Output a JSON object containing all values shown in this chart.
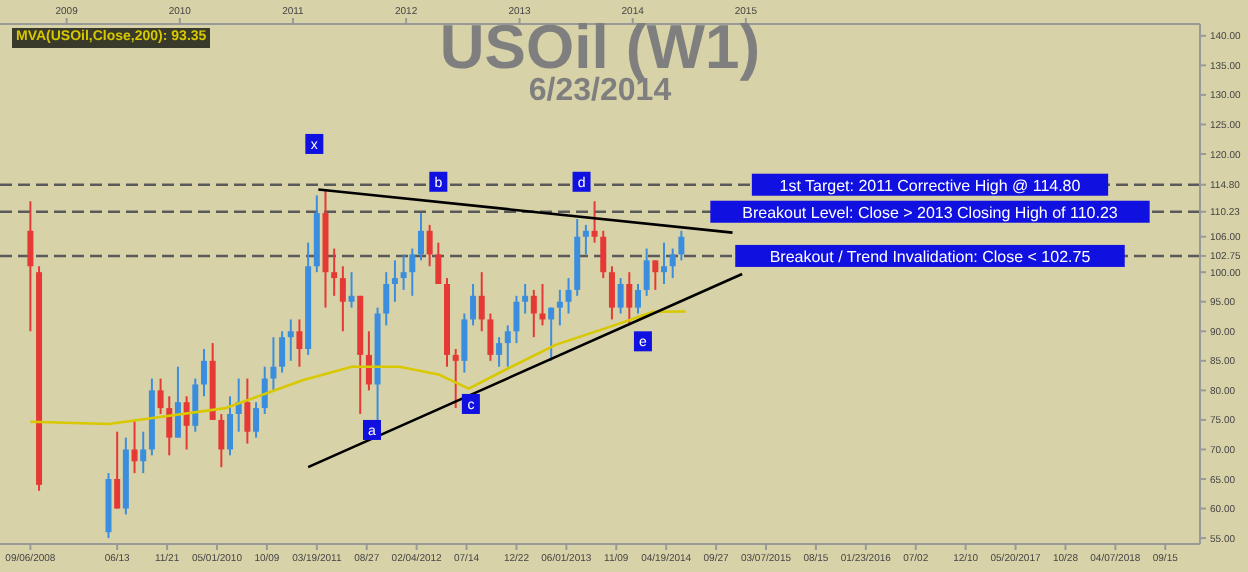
{
  "chart_data": {
    "type": "candlestick",
    "title": "USOil (W1)",
    "subtitle": "6/23/2014",
    "legend": "top left",
    "xlim": [
      "2008-05-31",
      "2019-01-05"
    ],
    "xticks": [
      {
        "value": "2008-09-06",
        "label": "09/06/2008"
      },
      {
        "value": "2009-06-13",
        "label": "06/13"
      },
      {
        "value": "2009-11-21",
        "label": "11/21"
      },
      {
        "value": "2010-05-01",
        "label": "05/01/2010"
      },
      {
        "value": "2010-10-09",
        "label": "10/09"
      },
      {
        "value": "2011-03-19",
        "label": "03/19/2011"
      },
      {
        "value": "2011-08-27",
        "label": "08/27"
      },
      {
        "value": "2012-02-04",
        "label": "02/04/2012"
      },
      {
        "value": "2012-07-14",
        "label": "07/14"
      },
      {
        "value": "2012-12-22",
        "label": "12/22"
      },
      {
        "value": "2013-06-01",
        "label": "06/01/2013"
      },
      {
        "value": "2013-11-09",
        "label": "11/09"
      },
      {
        "value": "2014-04-19",
        "label": "04/19/2014"
      },
      {
        "value": "2014-09-27",
        "label": "09/27"
      },
      {
        "value": "2015-03-07",
        "label": "03/07/2015"
      },
      {
        "value": "2015-08-15",
        "label": "08/15"
      },
      {
        "value": "2016-01-23",
        "label": "01/23/2016"
      },
      {
        "value": "2016-07-02",
        "label": "07/02"
      },
      {
        "value": "2016-12-10",
        "label": "12/10"
      },
      {
        "value": "2017-05-20",
        "label": "05/20/2017"
      },
      {
        "value": "2017-10-28",
        "label": "10/28"
      },
      {
        "value": "2018-04-07",
        "label": "04/07/2018"
      },
      {
        "value": "2018-09-15",
        "label": "09/15"
      }
    ],
    "x2lim": [
      "2008-05-31",
      "2019-01-05"
    ],
    "x2ticks": [
      {
        "value": "2009-01-01",
        "label": "2009"
      },
      {
        "value": "2010-01-01",
        "label": "2010"
      },
      {
        "value": "2011-01-01",
        "label": "2011"
      },
      {
        "value": "2012-01-01",
        "label": "2012"
      },
      {
        "value": "2013-01-01",
        "label": "2013"
      },
      {
        "value": "2014-01-01",
        "label": "2014"
      },
      {
        "value": "2015-01-01",
        "label": "2015"
      }
    ],
    "ylim": [
      54,
      142
    ],
    "yticks": [
      {
        "value": 55,
        "label": "55.00"
      },
      {
        "value": 60,
        "label": "60.00"
      },
      {
        "value": 65,
        "label": "65.00"
      },
      {
        "value": 70,
        "label": "70.00"
      },
      {
        "value": 75,
        "label": "75.00"
      },
      {
        "value": 80,
        "label": "80.00"
      },
      {
        "value": 85,
        "label": "85.00"
      },
      {
        "value": 90,
        "label": "90.00"
      },
      {
        "value": 95,
        "label": "95.00"
      },
      {
        "value": 100,
        "label": "100.00"
      },
      {
        "value": 102.75,
        "label": "102.75"
      },
      {
        "value": 106,
        "label": "106.00"
      },
      {
        "value": 110.23,
        "label": "110.23"
      },
      {
        "value": 114.8,
        "label": "114.80"
      },
      {
        "value": 120,
        "label": "120.00"
      },
      {
        "value": 125,
        "label": "125.00"
      },
      {
        "value": 130,
        "label": "130.00"
      },
      {
        "value": 135,
        "label": "135.00"
      },
      {
        "value": 140,
        "label": "140.00"
      }
    ],
    "series": [
      {
        "type": "candlestick",
        "color": "#3b8ede",
        "x": [
          "2009-05-16",
          "2009-07-11",
          "2009-09-05",
          "2009-10-03",
          "2009-12-26",
          "2010-02-20",
          "2010-03-20",
          "2010-06-12",
          "2010-07-10",
          "2010-09-04",
          "2010-10-02",
          "2010-10-30",
          "2010-11-27",
          "2010-12-25",
          "2011-02-19",
          "2011-03-19",
          "2011-07-09",
          "2011-10-01",
          "2011-10-29",
          "2011-11-26",
          "2011-12-24",
          "2012-01-21",
          "2012-02-18",
          "2012-07-07",
          "2012-08-04",
          "2012-10-27",
          "2012-11-24",
          "2012-12-22",
          "2013-01-19",
          "2013-04-13",
          "2013-05-11",
          "2013-06-08",
          "2013-07-06",
          "2013-08-03",
          "2013-11-23",
          "2014-01-18",
          "2014-02-15",
          "2014-04-12",
          "2014-05-10",
          "2014-06-07"
        ],
        "ohlc": [
          [
            56,
            66,
            55,
            65
          ],
          [
            60,
            72,
            59,
            70
          ],
          [
            68,
            73,
            66,
            70
          ],
          [
            70,
            82,
            69,
            80
          ],
          [
            72,
            84,
            72,
            78
          ],
          [
            74,
            82,
            73,
            81
          ],
          [
            81,
            87,
            79,
            85
          ],
          [
            70,
            79,
            69,
            76
          ],
          [
            76,
            82,
            73,
            78
          ],
          [
            73,
            78,
            72,
            77
          ],
          [
            77,
            84,
            76,
            82
          ],
          [
            82,
            89,
            80,
            84
          ],
          [
            84,
            90,
            83,
            89
          ],
          [
            89,
            92,
            85,
            90
          ],
          [
            87,
            105,
            86,
            101
          ],
          [
            101,
            113,
            100,
            110
          ],
          [
            95,
            100,
            94,
            96
          ],
          [
            81,
            94,
            75,
            93
          ],
          [
            93,
            100,
            91,
            98
          ],
          [
            98,
            102,
            95,
            99
          ],
          [
            99,
            103,
            97,
            100
          ],
          [
            100,
            104,
            96,
            103
          ],
          [
            103,
            110,
            102,
            107
          ],
          [
            85,
            93,
            83,
            92
          ],
          [
            92,
            98,
            91,
            96
          ],
          [
            86,
            89,
            84,
            88
          ],
          [
            88,
            91,
            84,
            90
          ],
          [
            90,
            96,
            88,
            95
          ],
          [
            95,
            98,
            93,
            96
          ],
          [
            92,
            94,
            85,
            94
          ],
          [
            94,
            97,
            91,
            95
          ],
          [
            95,
            99,
            93,
            97
          ],
          [
            97,
            109,
            96,
            106
          ],
          [
            106,
            108,
            103,
            107
          ],
          [
            94,
            99,
            93,
            98
          ],
          [
            94,
            98,
            93,
            97
          ],
          [
            97,
            104,
            96,
            102
          ],
          [
            100,
            105,
            98,
            101
          ],
          [
            101,
            104,
            99,
            103
          ],
          [
            103,
            107,
            102,
            106
          ]
        ]
      },
      {
        "type": "candlestick",
        "color": "#e53935",
        "x": [
          "2008-09-06",
          "2008-10-04",
          "2009-06-13",
          "2009-08-08",
          "2009-10-31",
          "2009-11-28",
          "2010-01-23",
          "2010-04-17",
          "2010-05-15",
          "2010-08-07",
          "2011-01-22",
          "2011-04-16",
          "2011-05-14",
          "2011-06-11",
          "2011-08-06",
          "2011-09-03",
          "2012-03-17",
          "2012-04-14",
          "2012-05-12",
          "2012-06-09",
          "2012-09-01",
          "2012-09-29",
          "2013-02-16",
          "2013-03-16",
          "2013-08-31",
          "2013-09-28",
          "2013-10-26",
          "2013-12-21",
          "2014-03-15"
        ],
        "ohlc": [
          [
            107,
            112,
            90,
            101
          ],
          [
            100,
            101,
            63,
            64
          ],
          [
            65,
            73,
            60,
            60
          ],
          [
            70,
            75,
            66,
            68
          ],
          [
            80,
            82,
            76,
            77
          ],
          [
            77,
            79,
            69,
            72
          ],
          [
            78,
            79,
            70,
            74
          ],
          [
            85,
            88,
            75,
            75
          ],
          [
            75,
            76,
            67,
            70
          ],
          [
            78,
            82,
            71,
            73
          ],
          [
            90,
            92,
            84,
            87
          ],
          [
            110,
            114,
            94,
            100
          ],
          [
            100,
            104,
            96,
            99
          ],
          [
            99,
            101,
            90,
            95
          ],
          [
            96,
            96,
            76,
            86
          ],
          [
            86,
            90,
            80,
            81
          ],
          [
            107,
            108,
            101,
            103
          ],
          [
            103,
            105,
            98,
            98
          ],
          [
            98,
            99,
            84,
            86
          ],
          [
            86,
            87,
            77,
            85
          ],
          [
            96,
            100,
            90,
            92
          ],
          [
            92,
            93,
            85,
            86
          ],
          [
            96,
            97,
            89,
            93
          ],
          [
            93,
            98,
            91,
            92
          ],
          [
            107,
            112,
            105,
            106
          ],
          [
            106,
            107,
            99,
            100
          ],
          [
            100,
            101,
            92,
            94
          ],
          [
            98,
            100,
            91,
            94
          ],
          [
            102,
            102,
            97,
            100
          ]
        ]
      },
      {
        "type": "line",
        "name": "MVA(USOil,Close,200): 93.35",
        "color": "#d8c800",
        "x": [
          "2008-09-06",
          "2009-05-16",
          "2010-05-29",
          "2011-02-01",
          "2011-07-10",
          "2011-12-10",
          "2012-04-14",
          "2012-07-21",
          "2012-11-24",
          "2013-04-27",
          "2013-11-02",
          "2014-03-08",
          "2014-06-21"
        ],
        "values": [
          74.7,
          74.3,
          77,
          81.7,
          84,
          84,
          82.7,
          80.3,
          83.7,
          87.7,
          91,
          93.3,
          93.35
        ]
      },
      {
        "type": "line",
        "color": "#000000",
        "x": [
          "2011-03-24",
          "2014-11-19"
        ],
        "values": [
          114,
          106.7
        ]
      },
      {
        "type": "line",
        "color": "#000000",
        "x": [
          "2011-02-19",
          "2014-12-20"
        ],
        "values": [
          67,
          99.7
        ]
      }
    ],
    "ref_lines": [
      {
        "axis": "y",
        "value": 114.8,
        "label": "1st Target: 2011 Corrective High @ 114.80",
        "line_style": "dashed",
        "color": "#5a5a5a"
      },
      {
        "axis": "y",
        "value": 110.23,
        "label": "Breakout Level: Close > 2013 Closing High of 110.23",
        "line_style": "dashed",
        "color": "#5a5a5a"
      },
      {
        "axis": "y",
        "value": 102.75,
        "label": "Breakout / Trend Invalidation: Close < 102.75",
        "line_style": "dashed",
        "color": "#5a5a5a"
      }
    ],
    "annotations": [
      {
        "text": "x",
        "x": "2011-03-11",
        "y": 121.7
      },
      {
        "text": "a",
        "x": "2011-09-13",
        "y": 73.3
      },
      {
        "text": "b",
        "x": "2012-04-14",
        "y": 115.3
      },
      {
        "text": "c",
        "x": "2012-07-28",
        "y": 77.7
      },
      {
        "text": "d",
        "x": "2013-07-20",
        "y": 115.3
      },
      {
        "text": "e",
        "x": "2014-02-03",
        "y": 88.3
      }
    ]
  }
}
